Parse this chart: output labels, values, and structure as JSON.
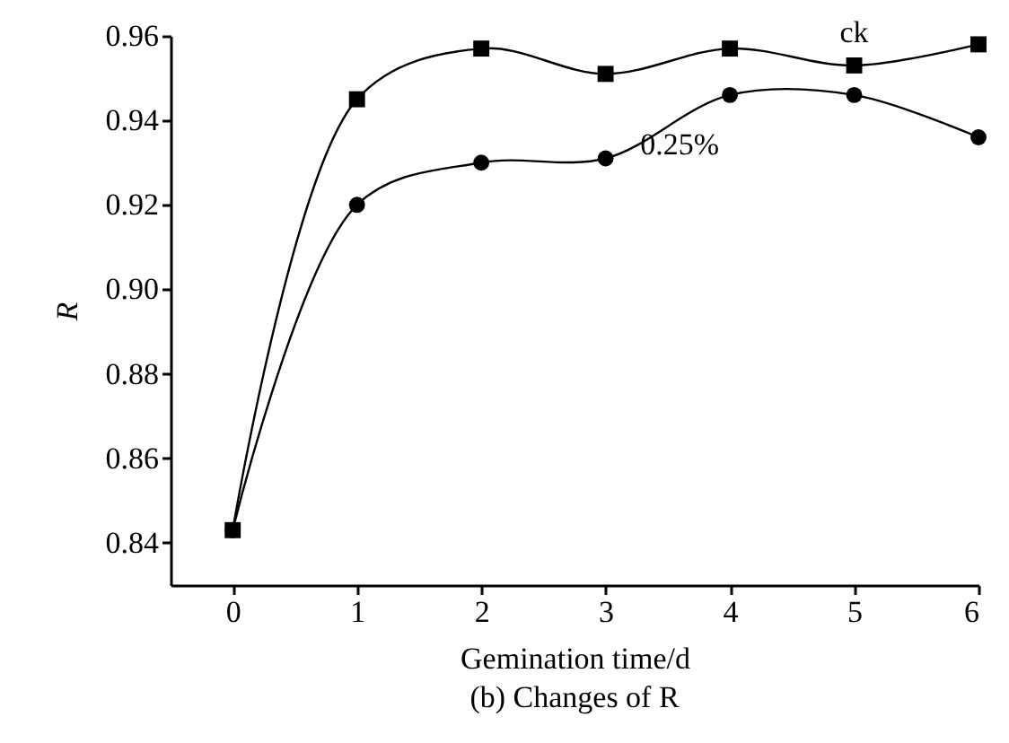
{
  "chart_data": {
    "type": "line",
    "title": "(b) Changes of R",
    "xlabel": "Gemination time/d",
    "ylabel": "R",
    "x": [
      0,
      1,
      2,
      3,
      4,
      5,
      6
    ],
    "series": [
      {
        "name": "ck",
        "color": "#000000",
        "marker": "square",
        "values": [
          0.843,
          0.945,
          0.957,
          0.951,
          0.957,
          0.953,
          0.958
        ]
      },
      {
        "name": "0.25%",
        "color": "#000000",
        "marker": "circle",
        "values": [
          0.843,
          0.92,
          0.93,
          0.931,
          0.946,
          0.946,
          0.936
        ]
      }
    ],
    "xlim": [
      -0.5,
      6
    ],
    "xticks": [
      0,
      1,
      2,
      3,
      4,
      5,
      6
    ],
    "ylim": [
      0.83,
      0.96
    ],
    "yticks": [
      0.84,
      0.86,
      0.88,
      {
        "value": 0.9,
        "label": "0.90"
      },
      0.92,
      0.94,
      0.96
    ],
    "grid": false,
    "line_style": "solid"
  }
}
